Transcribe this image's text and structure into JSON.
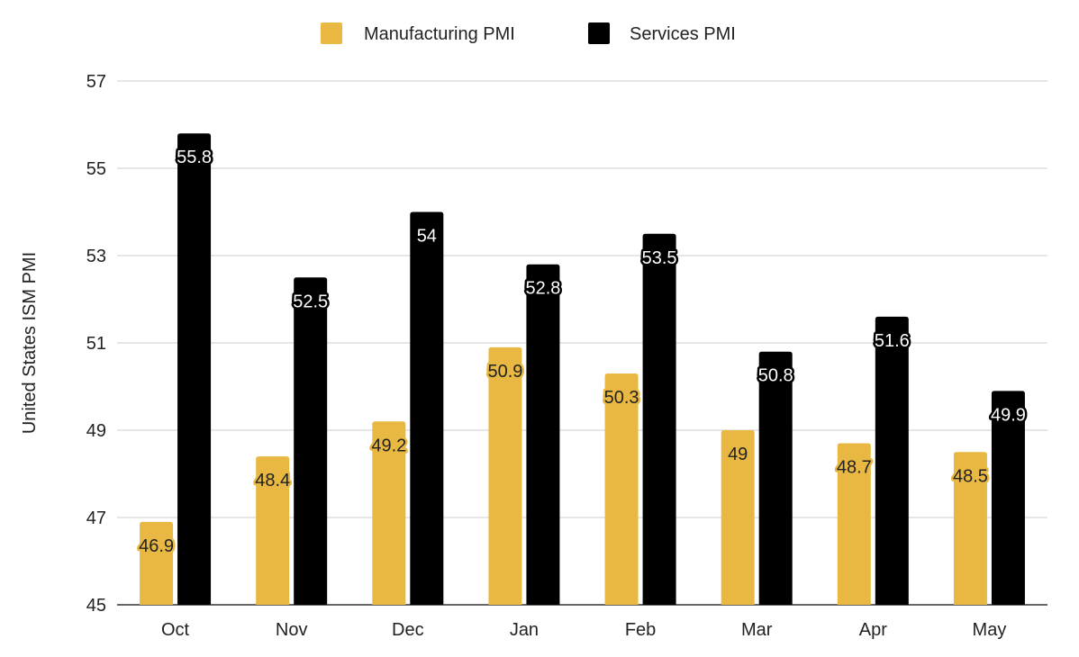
{
  "chart_data": {
    "type": "bar",
    "categories": [
      "Oct",
      "Nov",
      "Dec",
      "Jan",
      "Feb",
      "Mar",
      "Apr",
      "May"
    ],
    "series": [
      {
        "name": "Manufacturing PMI",
        "color": "#e8b842",
        "values": [
          46.9,
          48.4,
          49.2,
          50.9,
          50.3,
          49,
          48.7,
          48.5
        ],
        "labels": [
          "46.9",
          "48.4",
          "49.2",
          "50.9",
          "50.3",
          "49",
          "48.7",
          "48.5"
        ]
      },
      {
        "name": "Services PMI",
        "color": "#000000",
        "values": [
          55.8,
          52.5,
          54,
          52.8,
          53.5,
          50.8,
          51.6,
          49.9
        ],
        "labels": [
          "55.8",
          "52.5",
          "54",
          "52.8",
          "53.5",
          "50.8",
          "51.6",
          "49.9"
        ]
      }
    ],
    "title": "",
    "xlabel": "",
    "ylabel": "United States ISM PMI",
    "ylim": [
      45,
      57
    ],
    "yticks": [
      "45",
      "47",
      "49",
      "51",
      "53",
      "55",
      "57"
    ],
    "grid": true,
    "legend_position": "top-center"
  }
}
